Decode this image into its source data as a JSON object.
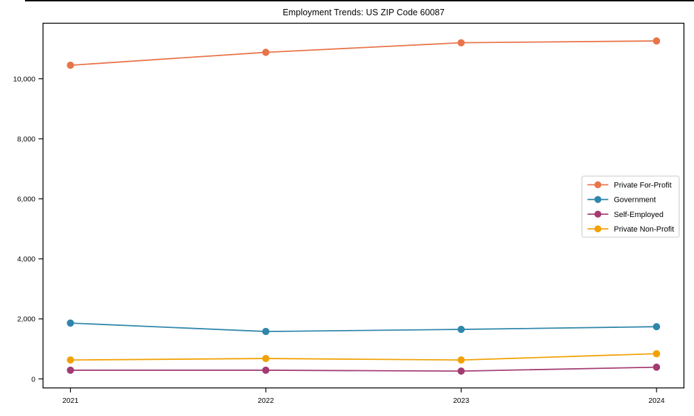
{
  "figure": {
    "background": "#ffffff",
    "axis_color": "#000000",
    "legend_border_color": "#c9c9c9"
  },
  "chart_data": {
    "type": "line",
    "title": "Employment Trends: US ZIP Code 60087",
    "categories": [
      2021,
      2022,
      2023,
      2024
    ],
    "x_tick_labels": [
      "2021",
      "2022",
      "2023",
      "2024"
    ],
    "series": [
      {
        "name": "Private For-Profit",
        "color": "#E8744A",
        "values": [
          10450,
          10880,
          11200,
          11260
        ]
      },
      {
        "name": "Government",
        "color": "#2F86AB",
        "values": [
          1860,
          1580,
          1650,
          1740
        ]
      },
      {
        "name": "Self-Employed",
        "color": "#A33B72",
        "values": [
          290,
          290,
          260,
          390
        ]
      },
      {
        "name": "Private Non-Profit",
        "color": "#F2A104",
        "values": [
          630,
          680,
          630,
          840
        ]
      }
    ],
    "xlabel": "",
    "ylabel": "",
    "ylim": [
      -300,
      11850
    ],
    "yticks": [
      0,
      2000,
      4000,
      6000,
      8000,
      10000
    ],
    "y_tick_labels": [
      "0",
      "2,000",
      "4,000",
      "6,000",
      "8,000",
      "10,000"
    ],
    "grid": false,
    "marker": "circle",
    "legend_position": "center right"
  }
}
